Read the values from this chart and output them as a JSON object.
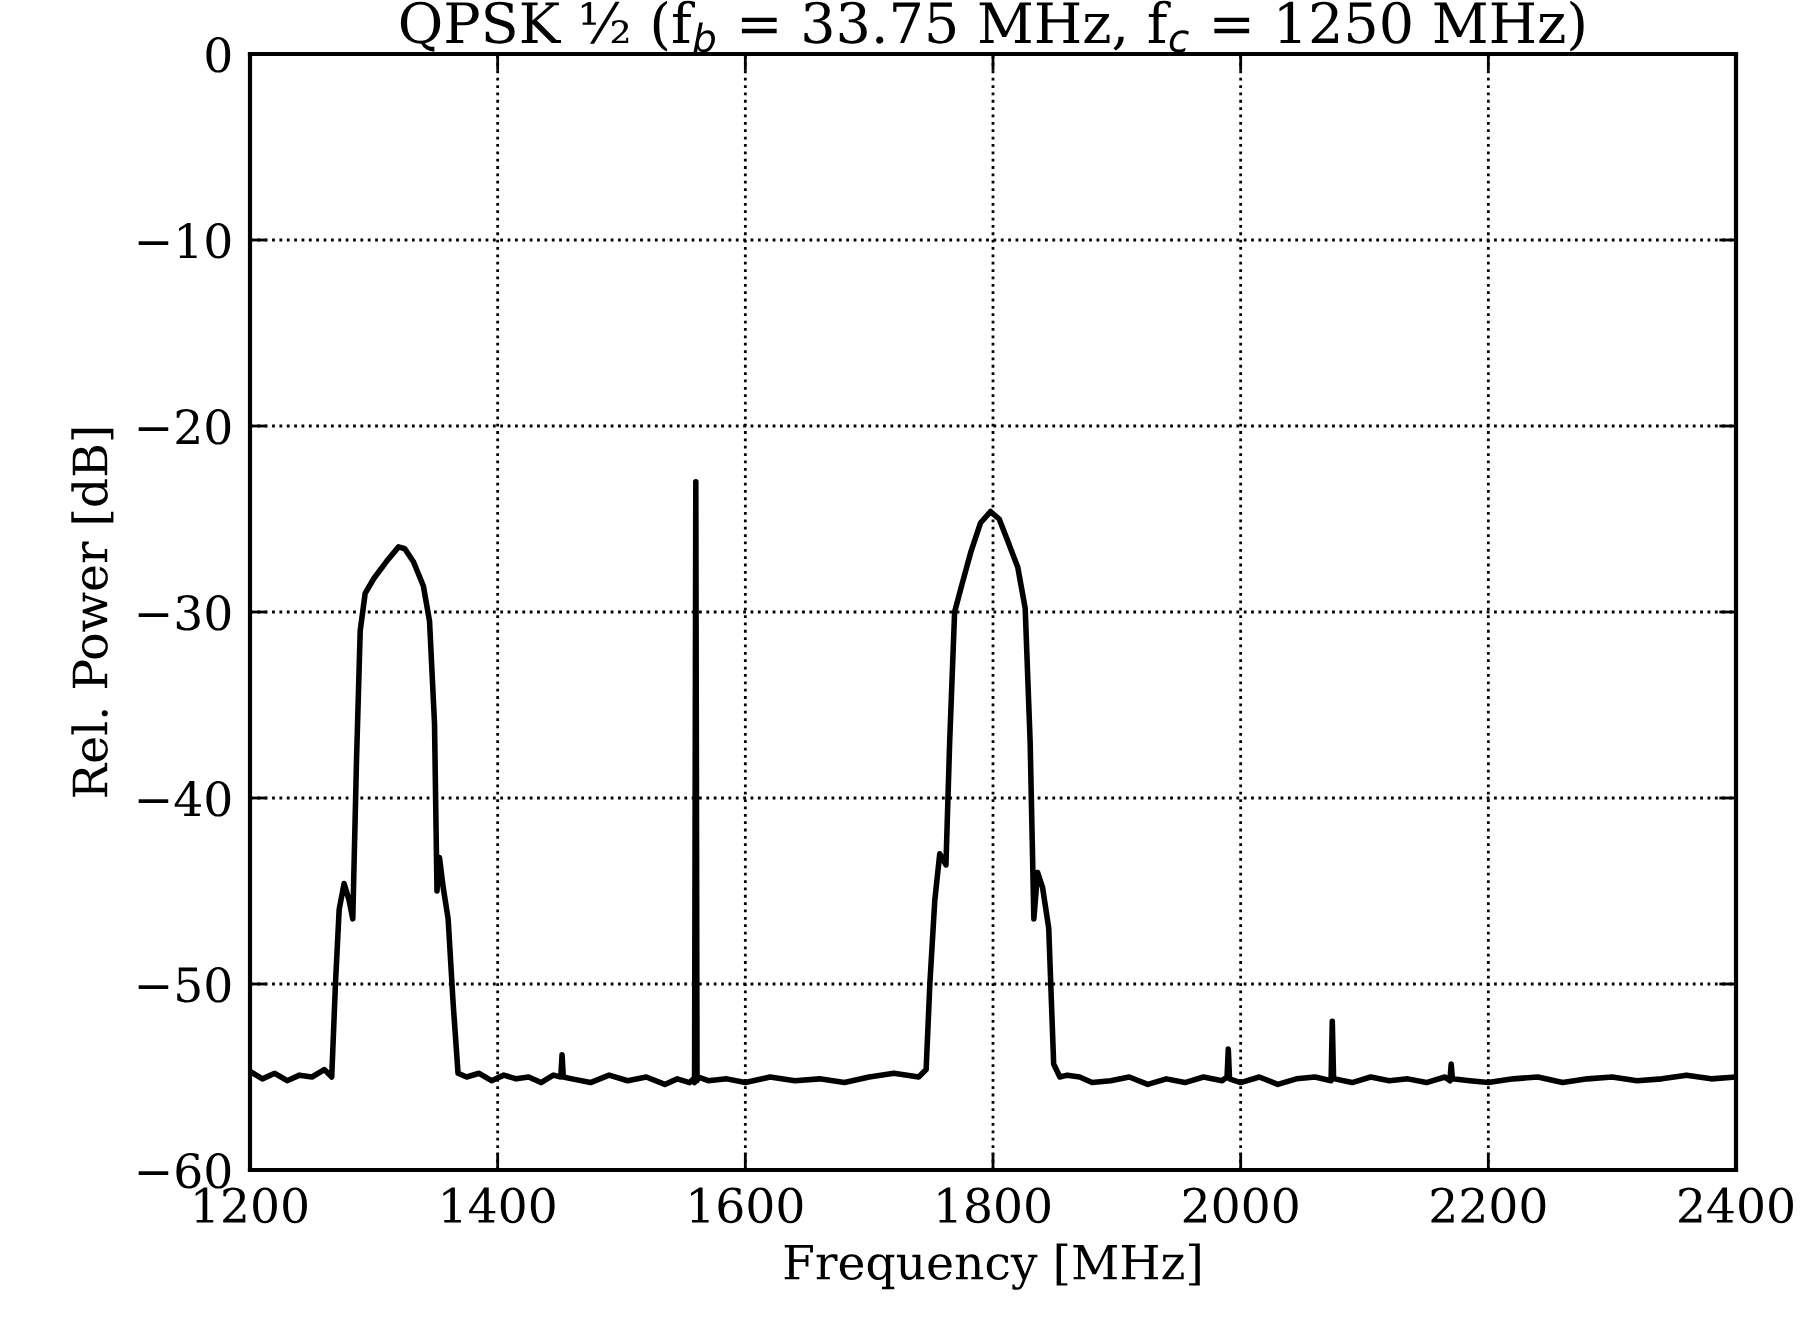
{
  "chart_data": {
    "type": "line",
    "title": "QPSK ½ (f$_{b}$ = 33.75 MHz, f$_{c}$ = 1250 MHz)",
    "xlabel": "Frequency [MHz]",
    "ylabel": "Rel. Power [dB]",
    "xlim": [
      1200,
      2400
    ],
    "ylim": [
      -60,
      0
    ],
    "xticks": [
      1200,
      1400,
      1600,
      1800,
      2000,
      2200,
      2400
    ],
    "yticks": [
      -60,
      -50,
      -40,
      -30,
      -20,
      -10,
      0
    ],
    "grid": true,
    "marker": "none",
    "series": [
      {
        "color": "#000000",
        "x": [
          1200,
          1210,
          1220,
          1230,
          1240,
          1250,
          1260,
          1266,
          1269,
          1272,
          1276,
          1280,
          1283,
          1286,
          1289,
          1293,
          1300,
          1310,
          1320,
          1325,
          1332,
          1340,
          1345,
          1349,
          1351,
          1353,
          1356,
          1360,
          1364,
          1368,
          1375,
          1385,
          1395,
          1405,
          1415,
          1425,
          1435,
          1445,
          1451,
          1452,
          1453,
          1460,
          1475,
          1490,
          1505,
          1520,
          1535,
          1545,
          1555,
          1558,
          1559,
          1560,
          1561,
          1562,
          1570,
          1585,
          1600,
          1620,
          1640,
          1660,
          1680,
          1700,
          1720,
          1740,
          1746,
          1749,
          1753,
          1757,
          1762,
          1765,
          1769,
          1775,
          1782,
          1790,
          1798,
          1805,
          1812,
          1820,
          1826,
          1830,
          1833,
          1836,
          1840,
          1845,
          1849,
          1854,
          1860,
          1870,
          1880,
          1895,
          1910,
          1925,
          1940,
          1955,
          1970,
          1985,
          1989,
          1990,
          1991,
          2000,
          2015,
          2030,
          2045,
          2060,
          2073,
          2074,
          2075,
          2076,
          2090,
          2105,
          2120,
          2135,
          2150,
          2165,
          2169,
          2170,
          2171,
          2185,
          2200,
          2220,
          2240,
          2260,
          2280,
          2300,
          2320,
          2340,
          2360,
          2380,
          2400
        ],
        "values": [
          -54.7,
          -55.1,
          -54.8,
          -55.2,
          -54.9,
          -55.0,
          -54.6,
          -55.0,
          -50.0,
          -46.0,
          -44.6,
          -45.5,
          -46.5,
          -38.0,
          -31.0,
          -29.0,
          -28.2,
          -27.3,
          -26.5,
          -26.6,
          -27.3,
          -28.6,
          -30.5,
          -36.0,
          -45.0,
          -43.2,
          -44.8,
          -46.5,
          -51.0,
          -54.8,
          -55.0,
          -54.8,
          -55.2,
          -54.9,
          -55.1,
          -55.0,
          -55.3,
          -54.9,
          -55.0,
          -53.8,
          -55.0,
          -55.1,
          -55.3,
          -54.9,
          -55.2,
          -55.0,
          -55.4,
          -55.1,
          -55.3,
          -55.1,
          -55.3,
          -23.0,
          -55.2,
          -55.0,
          -55.2,
          -55.1,
          -55.3,
          -55.0,
          -55.2,
          -55.1,
          -55.3,
          -55.0,
          -54.8,
          -55.0,
          -54.6,
          -50.0,
          -45.5,
          -43.0,
          -43.6,
          -37.0,
          -30.0,
          -28.5,
          -26.8,
          -25.2,
          -24.6,
          -25.0,
          -26.2,
          -27.6,
          -29.8,
          -37.0,
          -46.5,
          -44.0,
          -44.8,
          -47.0,
          -54.3,
          -55.0,
          -54.9,
          -55.0,
          -55.3,
          -55.2,
          -55.0,
          -55.4,
          -55.1,
          -55.3,
          -55.0,
          -55.2,
          -55.0,
          -53.5,
          -55.1,
          -55.3,
          -55.0,
          -55.4,
          -55.1,
          -55.0,
          -55.2,
          -52.0,
          -55.0,
          -55.1,
          -55.3,
          -55.0,
          -55.2,
          -55.1,
          -55.3,
          -55.0,
          -55.2,
          -54.3,
          -55.1,
          -55.2,
          -55.3,
          -55.1,
          -55.0,
          -55.3,
          -55.1,
          -55.0,
          -55.2,
          -55.1,
          -54.9,
          -55.1,
          -55.0
        ]
      }
    ]
  }
}
